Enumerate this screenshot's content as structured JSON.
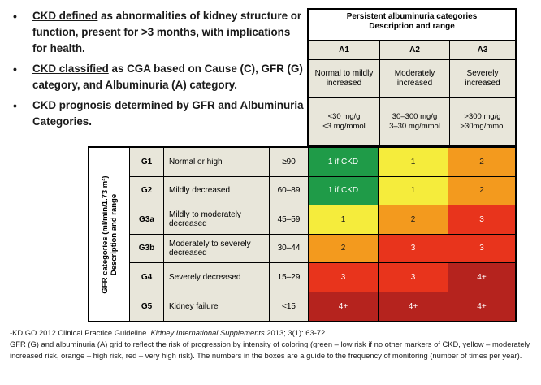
{
  "bullets": [
    {
      "lead": "CKD defined",
      "rest": " as abnormalities of kidney structure or function, present for >3 months, with implications for health."
    },
    {
      "lead": "CKD classified",
      "rest": " as CGA based on Cause (C), GFR (G) category, and Albuminuria (A) category."
    },
    {
      "lead": "CKD prognosis",
      "rest": " determined by GFR and Albuminuria Categories."
    }
  ],
  "albuminuria": {
    "title_line1": "Persistent albuminuria categories",
    "title_line2": "Description and range",
    "columns": [
      {
        "code": "A1",
        "desc": "Normal to mildly increased",
        "range1": "<30 mg/g",
        "range2": "<3 mg/mmol"
      },
      {
        "code": "A2",
        "desc": "Moderately increased",
        "range1": "30–300 mg/g",
        "range2": "3–30 mg/mmol"
      },
      {
        "code": "A3",
        "desc": "Severely increased",
        "range1": ">300 mg/g",
        "range2": ">30mg/mmol"
      }
    ]
  },
  "gfr": {
    "side_label_line1": "GFR categories (ml/min/1.73 m²)",
    "side_label_line2": "Description and range",
    "rows": [
      {
        "code": "G1",
        "desc": "Normal or high",
        "range": "≥90",
        "a1": "1 if CKD",
        "a2": "1",
        "a3": "2"
      },
      {
        "code": "G2",
        "desc": "Mildly decreased",
        "range": "60–89",
        "a1": "1 if CKD",
        "a2": "1",
        "a3": "2"
      },
      {
        "code": "G3a",
        "desc": "Mildly to moderately decreased",
        "range": "45–59",
        "a1": "1",
        "a2": "2",
        "a3": "3"
      },
      {
        "code": "G3b",
        "desc": "Moderately to severely decreased",
        "range": "30–44",
        "a1": "2",
        "a2": "3",
        "a3": "3"
      },
      {
        "code": "G4",
        "desc": "Severely decreased",
        "range": "15–29",
        "a1": "3",
        "a2": "3",
        "a3": "4+"
      },
      {
        "code": "G5",
        "desc": "Kidney failure",
        "range": "<15",
        "a1": "4+",
        "a2": "4+",
        "a3": "4+"
      }
    ]
  },
  "colors": {
    "green": "#1f9b48",
    "yellow": "#f5ec3c",
    "orange": "#f39a1e",
    "red": "#e8341c",
    "dark_red": "#b5231e"
  },
  "cell_colors": [
    [
      "green",
      "yellow",
      "orange"
    ],
    [
      "green",
      "yellow",
      "orange"
    ],
    [
      "yellow",
      "orange",
      "red"
    ],
    [
      "orange",
      "red",
      "red"
    ],
    [
      "red",
      "red",
      "dark_red"
    ],
    [
      "dark_red",
      "dark_red",
      "dark_red"
    ]
  ],
  "footnote": {
    "line1_a": "¹KDIGO 2012 Clinical Practice Guideline. ",
    "line1_journal": "Kidney International Supplements",
    "line1_b": " 2013; 3(1): 63-72.",
    "line2": "GFR (G) and albuminuria (A) grid to reflect the risk of progression by intensity of coloring (green – low risk if no other markers of CKD, yellow – moderately increased risk, orange – high risk, red – very high risk). The numbers in the boxes are a guide to the frequency of monitoring (number of times per year)."
  }
}
